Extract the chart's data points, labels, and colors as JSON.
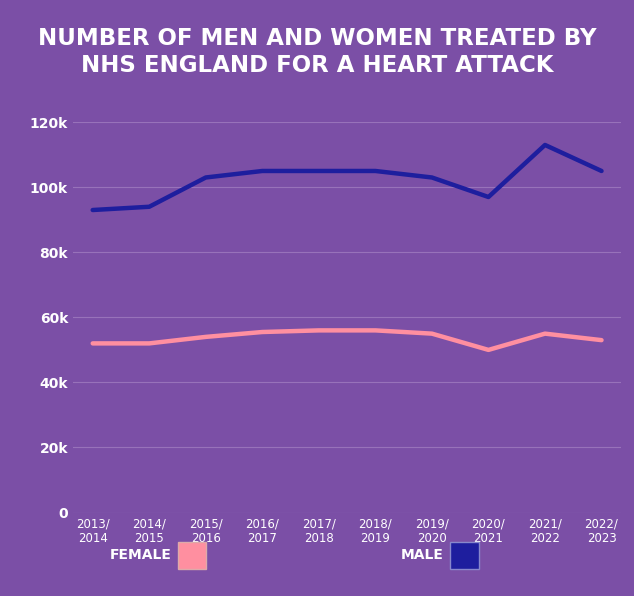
{
  "title_line1": "NUMBER OF MEN AND WOMEN TREATED BY",
  "title_line2": "NHS ENGLAND FOR A HEART ATTACK",
  "title_bg_color": "#3a1458",
  "title_text_color": "#ffffff",
  "bg_color": "#7b4fa6",
  "categories": [
    "2013/\n2014",
    "2014/\n2015",
    "2015/\n2016",
    "2016/\n2017",
    "2017/\n2018",
    "2018/\n2019",
    "2019/\n2020",
    "2020/\n2021",
    "2021/\n2022",
    "2022/\n2023"
  ],
  "male_values": [
    93000,
    94000,
    103000,
    105000,
    105000,
    105000,
    103000,
    97000,
    113000,
    105000
  ],
  "female_values": [
    52000,
    52000,
    54000,
    55500,
    56000,
    56000,
    55000,
    50000,
    55000,
    53000
  ],
  "male_color": "#1e1e9e",
  "female_color": "#ff8fa0",
  "male_label": "MALE",
  "female_label": "FEMALE",
  "ylim": [
    0,
    120000
  ],
  "yticks": [
    0,
    20000,
    40000,
    60000,
    80000,
    100000,
    120000
  ],
  "ytick_labels": [
    "0",
    "20k",
    "40k",
    "60k",
    "80k",
    "100k",
    "120k"
  ],
  "grid_color": "#b090cc",
  "line_width": 3.2,
  "legend_text_color": "#ffffff",
  "legend_fontsize": 10,
  "axis_tick_color": "#ffffff",
  "title_fontsize": 16.5
}
